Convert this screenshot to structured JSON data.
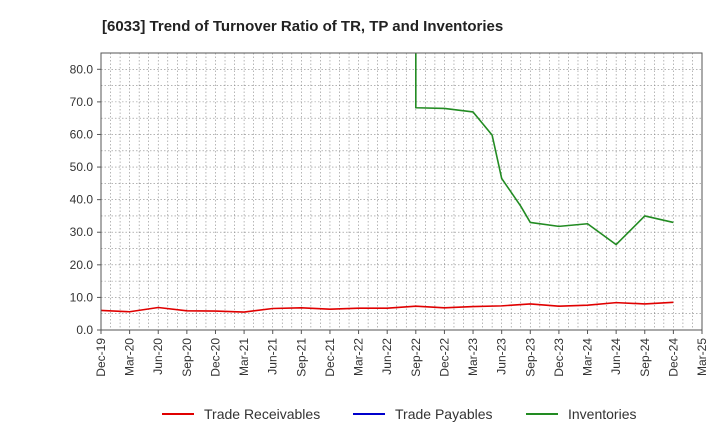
{
  "chart_data": {
    "type": "line",
    "title": "[6033]  Trend of Turnover Ratio of TR, TP and Inventories",
    "xlabel": "",
    "ylabel": "",
    "ylim": [
      0,
      85
    ],
    "yticks": [
      "0.0",
      "10.0",
      "20.0",
      "30.0",
      "40.0",
      "50.0",
      "60.0",
      "70.0",
      "80.0"
    ],
    "x_ticks": [
      "Dec-19",
      "Mar-20",
      "Jun-20",
      "Sep-20",
      "Dec-20",
      "Mar-21",
      "Jun-21",
      "Sep-21",
      "Dec-21",
      "Mar-22",
      "Jun-22",
      "Sep-22",
      "Dec-22",
      "Mar-23",
      "Jun-23",
      "Sep-23",
      "Dec-23",
      "Mar-24",
      "Jun-24",
      "Sep-24",
      "Dec-24",
      "Mar-25"
    ],
    "grid": true,
    "legend_position": "bottom",
    "series": [
      {
        "name": "Trade Receivables",
        "color": "#e00000",
        "points": [
          {
            "x": "Dec-19",
            "y": 6.0
          },
          {
            "x": "Mar-20",
            "y": 5.6
          },
          {
            "x": "Jun-20",
            "y": 6.9
          },
          {
            "x": "Sep-20",
            "y": 5.9
          },
          {
            "x": "Dec-20",
            "y": 5.8
          },
          {
            "x": "Mar-21",
            "y": 5.5
          },
          {
            "x": "Jun-21",
            "y": 6.6
          },
          {
            "x": "Sep-21",
            "y": 6.8
          },
          {
            "x": "Dec-21",
            "y": 6.4
          },
          {
            "x": "Mar-22",
            "y": 6.7
          },
          {
            "x": "Jun-22",
            "y": 6.7
          },
          {
            "x": "Sep-22",
            "y": 7.3
          },
          {
            "x": "Dec-22",
            "y": 6.8
          },
          {
            "x": "Mar-23",
            "y": 7.2
          },
          {
            "x": "Jun-23",
            "y": 7.4
          },
          {
            "x": "Sep-23",
            "y": 8.0
          },
          {
            "x": "Dec-23",
            "y": 7.3
          },
          {
            "x": "Mar-24",
            "y": 7.6
          },
          {
            "x": "Jun-24",
            "y": 8.4
          },
          {
            "x": "Sep-24",
            "y": 8.0
          },
          {
            "x": "Dec-24",
            "y": 8.5
          }
        ]
      },
      {
        "name": "Trade Payables",
        "color": "#0000cc",
        "points": []
      },
      {
        "name": "Inventories",
        "color": "#228b22",
        "points": [
          {
            "x": "Sep-22",
            "y": 120
          },
          {
            "x": "Sep-22",
            "y": 68.2
          },
          {
            "x": "Dec-22",
            "y": 68.0
          },
          {
            "x": "Mar-23",
            "y": 66.9
          },
          {
            "x": "May-23",
            "y": 59.8
          },
          {
            "x": "Jun-23",
            "y": 46.5
          },
          {
            "x": "Aug-23",
            "y": 38.0
          },
          {
            "x": "Sep-23",
            "y": 33.0
          },
          {
            "x": "Dec-23",
            "y": 31.8
          },
          {
            "x": "Mar-24",
            "y": 32.6
          },
          {
            "x": "Jun-24",
            "y": 26.2
          },
          {
            "x": "Sep-24",
            "y": 35.0
          },
          {
            "x": "Dec-24",
            "y": 33.0
          }
        ]
      }
    ]
  }
}
